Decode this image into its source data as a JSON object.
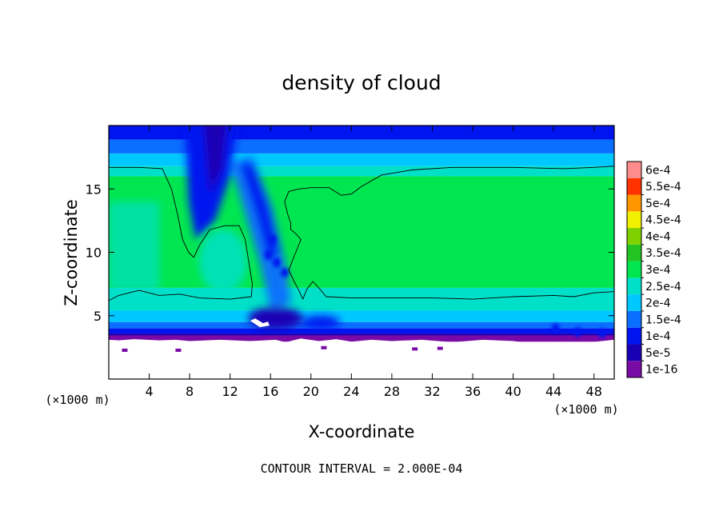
{
  "chart_data": {
    "type": "heatmap",
    "title": "density of cloud",
    "xlabel": "X-coordinate",
    "ylabel": "Z-coordinate",
    "x_unit_label": "(×1000 m)",
    "y_unit_label": "(×1000 m)",
    "xlim": [
      0,
      50
    ],
    "ylim": [
      0,
      20
    ],
    "x_ticks": [
      4,
      8,
      12,
      16,
      20,
      24,
      28,
      32,
      36,
      40,
      44,
      48
    ],
    "x_tick_labels": [
      "4",
      "8",
      "12",
      "16",
      "20",
      "24",
      "28",
      "32",
      "36",
      "40",
      "44",
      "48"
    ],
    "y_ticks": [
      5,
      10,
      15
    ],
    "y_tick_labels": [
      "5",
      "10",
      "15"
    ],
    "contour_interval_label": "CONTOUR INTERVAL = 2.000E-04",
    "colorbar": {
      "levels": [
        1e-16,
        5e-05,
        0.0001,
        0.00015,
        0.0002,
        0.00025,
        0.0003,
        0.00035,
        0.0004,
        0.00045,
        0.0005,
        0.00055,
        0.0006
      ],
      "labels": [
        "1e-16",
        "5e-5",
        "1e-4",
        "1.5e-4",
        "2e-4",
        "2.5e-4",
        "3e-4",
        "3.5e-4",
        "4e-4",
        "4.5e-4",
        "5e-4",
        "5.5e-4",
        "6e-4"
      ],
      "colors": [
        "#7a0aa5",
        "#1a00b4",
        "#0014f0",
        "#0a6eff",
        "#00c8ff",
        "#00e0c8",
        "#00e650",
        "#22c322",
        "#7fd200",
        "#f0f000",
        "#ff9600",
        "#ff3200",
        "#ff8c8c"
      ]
    },
    "cloud_base_z": 3.2,
    "contour_level_2e-4": [
      [
        [
          0,
          16.7
        ],
        [
          3,
          16.7
        ],
        [
          5.3,
          16.6
        ],
        [
          6.2,
          15
        ],
        [
          6.8,
          13
        ],
        [
          7.3,
          11
        ],
        [
          7.9,
          10
        ],
        [
          8.4,
          9.6
        ],
        [
          9,
          10.6
        ],
        [
          10,
          11.8
        ],
        [
          11.5,
          12.1
        ],
        [
          12.9,
          12.1
        ],
        [
          13.5,
          11
        ],
        [
          13.9,
          9
        ],
        [
          14.2,
          7.5
        ],
        [
          14.1,
          6.5
        ],
        [
          12,
          6.3
        ],
        [
          9,
          6.4
        ],
        [
          7,
          6.7
        ],
        [
          5,
          6.6
        ],
        [
          3,
          7
        ],
        [
          1,
          6.6
        ],
        [
          0,
          6.2
        ]
      ],
      [
        [
          17.4,
          14
        ],
        [
          17.8,
          14.8
        ],
        [
          18.8,
          15
        ],
        [
          20,
          15.1
        ],
        [
          21.8,
          15.1
        ],
        [
          23,
          14.5
        ],
        [
          24,
          14.6
        ],
        [
          25,
          15.2
        ],
        [
          27,
          16.1
        ],
        [
          30,
          16.5
        ],
        [
          34,
          16.7
        ],
        [
          40,
          16.7
        ],
        [
          45,
          16.6
        ],
        [
          48,
          16.7
        ],
        [
          50,
          16.8
        ],
        [
          50,
          6.9
        ],
        [
          48,
          6.8
        ],
        [
          46,
          6.5
        ],
        [
          44,
          6.6
        ],
        [
          40,
          6.5
        ],
        [
          36,
          6.3
        ],
        [
          32,
          6.4
        ],
        [
          28,
          6.4
        ],
        [
          24,
          6.4
        ],
        [
          21.5,
          6.5
        ],
        [
          21,
          7
        ],
        [
          20.2,
          7.7
        ],
        [
          19.6,
          7.1
        ],
        [
          19.2,
          6.3
        ],
        [
          18.8,
          7
        ],
        [
          18.4,
          7.6
        ],
        [
          17.8,
          8.6
        ],
        [
          18.8,
          10.6
        ],
        [
          19,
          11
        ],
        [
          18.6,
          11.4
        ],
        [
          18,
          11.8
        ],
        [
          18,
          12.3
        ],
        [
          17.7,
          13
        ],
        [
          17.4,
          14
        ]
      ]
    ]
  }
}
